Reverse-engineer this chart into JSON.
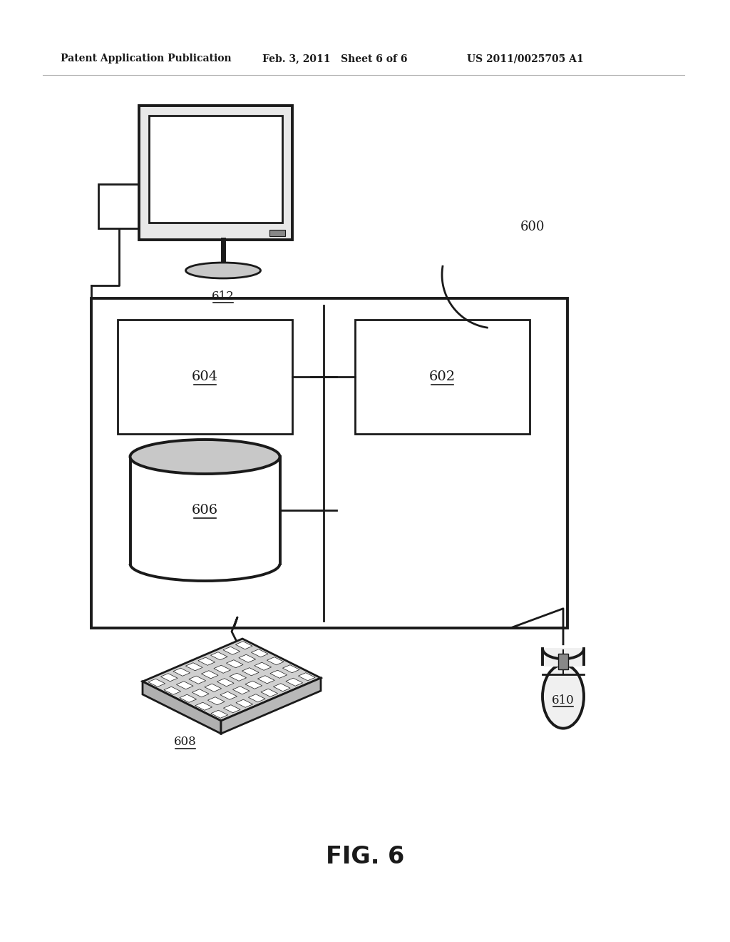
{
  "bg_color": "#ffffff",
  "line_color": "#1a1a1a",
  "gray_fill": "#c8c8c8",
  "light_gray": "#e8e8e8",
  "header_left": "Patent Application Publication",
  "header_mid": "Feb. 3, 2011   Sheet 6 of 6",
  "header_right": "US 2011/0025705 A1",
  "fig_label": "FIG. 6",
  "label_600": "600",
  "label_602": "602",
  "label_604": "604",
  "label_606": "606",
  "label_608": "608",
  "label_610": "610",
  "label_612": "612"
}
